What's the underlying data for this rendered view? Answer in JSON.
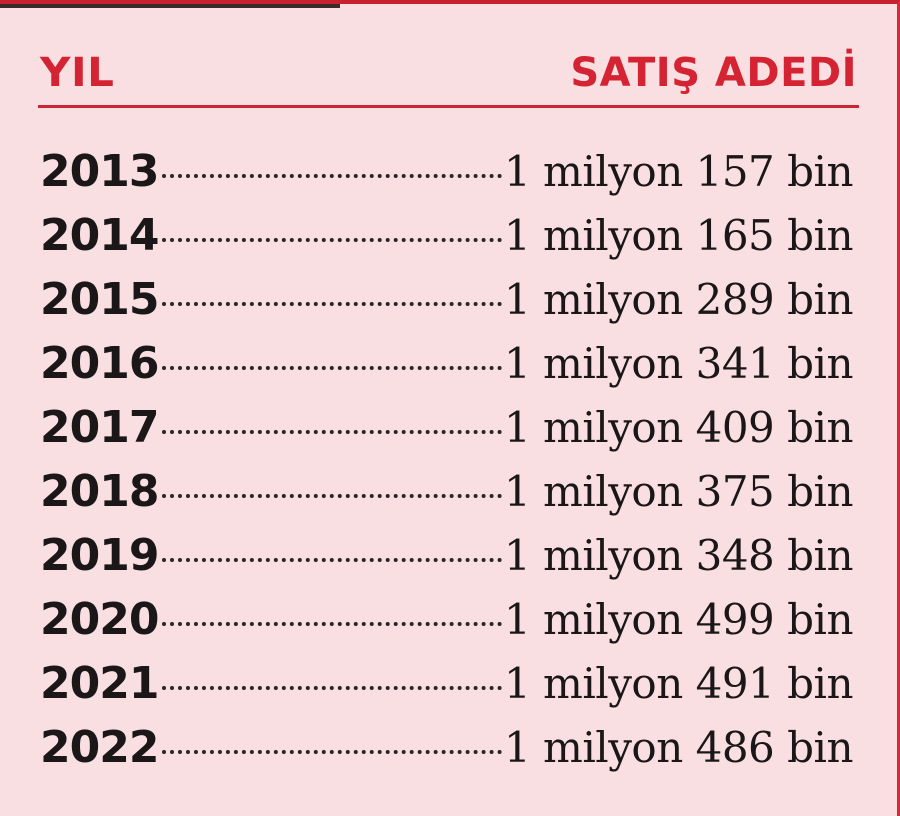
{
  "header": {
    "year_label": "YIL",
    "sales_label": "SATIŞ ADEDİ"
  },
  "rows": [
    {
      "year": "2013",
      "value": "1 milyon 157 bin"
    },
    {
      "year": "2014",
      "value": "1 milyon 165 bin"
    },
    {
      "year": "2015",
      "value": "1 milyon 289 bin"
    },
    {
      "year": "2016",
      "value": "1 milyon 341 bin"
    },
    {
      "year": "2017",
      "value": "1 milyon 409 bin"
    },
    {
      "year": "2018",
      "value": "1 milyon 375 bin"
    },
    {
      "year": "2019",
      "value": "1 milyon 348 bin"
    },
    {
      "year": "2020",
      "value": "1 milyon 499 bin"
    },
    {
      "year": "2021",
      "value": "1 milyon 491 bin"
    },
    {
      "year": "2022",
      "value": "1 milyon 486 bin"
    }
  ],
  "colors": {
    "accent": "#d42332",
    "background": "#f9dfe2",
    "text": "#1b1718"
  }
}
